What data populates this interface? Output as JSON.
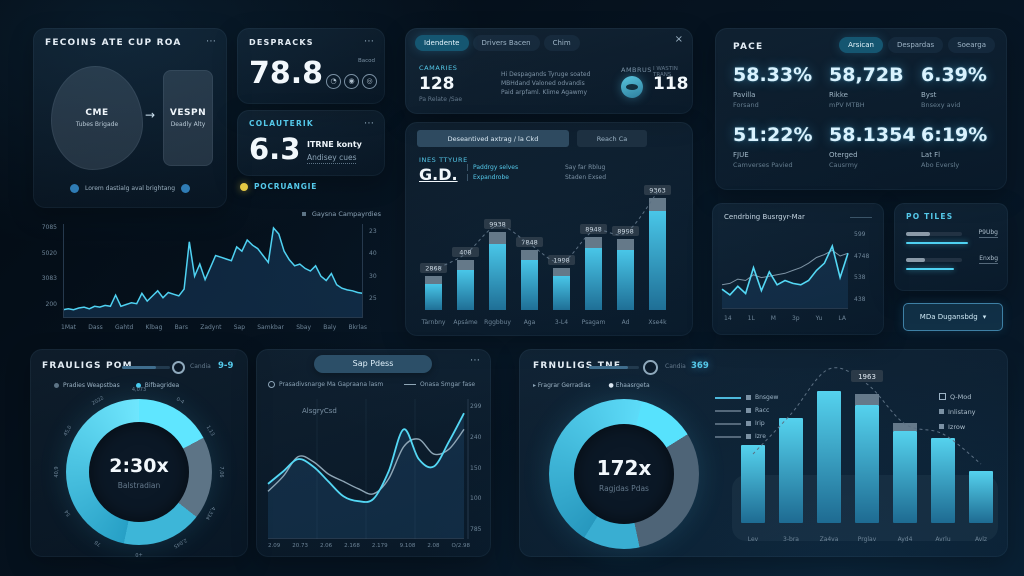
{
  "colors": {
    "accent": "#4fd2f2",
    "accent_bright": "#63e4ff",
    "slate": "#5d7486",
    "panel_line": "#24384c",
    "yellow": "#e5c944",
    "badge_bg": "#2b3a48",
    "bar_top": "#49c6e8",
    "bar_bottom": "#1f6f96"
  },
  "panels": {
    "flow": {
      "title": "FECOINS ATE CUP ROA",
      "menu": "⋯",
      "arrow": "→",
      "shape1": {
        "name": "CME",
        "sub": "Tubes Brigade"
      },
      "shape2": {
        "name": "VESPN",
        "sub": "Deadly Alty"
      },
      "footer": "Lorem dastialg aval brightang"
    },
    "metricA": {
      "title": "DESPRACKS",
      "menu": "⋯",
      "value": "78.8",
      "icons_label": "Bacod",
      "icons": [
        "◔",
        "◉",
        "◎"
      ]
    },
    "metricB": {
      "title": "COLAUTERIK",
      "menu": "⋯",
      "value": "6.3",
      "side_top": "ITRNE konty",
      "side_bottom": "Andisey cues"
    },
    "badgeRow": {
      "label": "POCRUANGIE"
    },
    "tabsPanel": {
      "tabs": [
        "Idendente",
        "Drivers Bacen",
        "Chim"
      ],
      "close": "×",
      "stat1": {
        "label": "CAMARIES",
        "value": "128",
        "sub": "Pa Relate /Sae"
      },
      "paragraph": [
        "Hi Despagands Tyruge soated",
        "MBHdand Valoned odvandis",
        "Paid arpfaml. Klime Agawmy"
      ],
      "stat2_label": "AMBRUS",
      "stat3": {
        "label": "I WASTIN TRANS",
        "value": "118"
      }
    },
    "barPanel": {
      "tab1": "Deseantived axtrag / la Ckd",
      "tab2": "Reach Ca",
      "label": "INES TTYURE",
      "value": "G.D.",
      "side": [
        "Paddrgy selves",
        "Expandrobe"
      ],
      "note": [
        "Say far Rblug",
        "Staden Exsed"
      ]
    },
    "pace": {
      "title": "PACE",
      "tabs": [
        "Arsican",
        "Despardas",
        "Soearga"
      ],
      "stats": [
        {
          "v": "58.33%",
          "l1": "Pavilla",
          "l2": "Forsand"
        },
        {
          "v": "58,72B",
          "l1": "Rikke",
          "l2": "mPV MTBH"
        },
        {
          "v": "6.39%",
          "l1": "Byst",
          "l2": "Bnsexy avid"
        },
        {
          "v": "51:22%",
          "l1": "FJUE",
          "l2": "Camverses Pavied"
        },
        {
          "v": "58.1354",
          "l1": "Oterged",
          "l2": "Causrmy"
        },
        {
          "v": "6:19%",
          "l1": "Lat Fl",
          "l2": "Abo Eversly"
        }
      ]
    },
    "trendSmall": {
      "title": "Cendrbing Busrgyr-Mar"
    },
    "poTiles": {
      "title": "PO TILES",
      "rows": [
        {
          "label": "P9Ubg",
          "fill": 42,
          "line": 62
        },
        {
          "label": "Enxbg",
          "fill": 34,
          "line": 48
        }
      ]
    },
    "dropdownButton": {
      "label": "MDa Dugansbdg",
      "chevron": "▾"
    },
    "gaugeLeft": {
      "title": "FRAULIGS POM",
      "slider_label": "Candia",
      "slider_value": "9-9",
      "legend": [
        {
          "label": "Pradies Weapstbas",
          "color": "#5d7486"
        },
        {
          "label": "Bifbagridea",
          "color": "#49cdf0"
        }
      ],
      "center": "2:30x",
      "center_sub": "Balstradian",
      "ticks": [
        "4,073",
        "0-4",
        "1,13",
        "7,06",
        "4,334",
        "2,045",
        "+0",
        "78",
        "54",
        "40,9",
        "45,0",
        "2022"
      ]
    },
    "linePanel": {
      "tab": "Sap Pdess",
      "menu": "⋯",
      "legend1": "Prasadivsnarge Ma Gapraana lasm",
      "legend2": "Onasa Smgar fase",
      "annotation": "AlsgryCsd"
    },
    "gaugeRight": {
      "title": "FRNULIGS TNE",
      "slider_label": "Candia",
      "slider_value": "369",
      "legend": [
        {
          "label": "Fragrar Gerradias",
          "marker": "▸"
        },
        {
          "label": "Ehaasrgeta",
          "marker": "●"
        }
      ],
      "center": "172x",
      "center_sub": "Ragjdas Pdas",
      "mini_legend": [
        "Bnsgew",
        "Racc",
        "Irip",
        "Izre"
      ],
      "side_legend": [
        "Q-Mod",
        "Inlistany",
        "Izrow"
      ]
    }
  },
  "chart_data": [
    {
      "id": "trend-main",
      "type": "area",
      "title": "",
      "legend": "Gaysna Campayrdies",
      "color": "#4fd2f2",
      "note": "relative values 0-100, axis labels decorative",
      "values": [
        5,
        6,
        5,
        7,
        8,
        6,
        9,
        8,
        10,
        9,
        22,
        9,
        11,
        13,
        12,
        24,
        15,
        21,
        27,
        19,
        25,
        23,
        21,
        29,
        84,
        44,
        58,
        40,
        54,
        68,
        66,
        64,
        62,
        78,
        73,
        86,
        80,
        76,
        68,
        60,
        100,
        93,
        73,
        63,
        56,
        58,
        53,
        50,
        56,
        44,
        39,
        47,
        34,
        30,
        28,
        27,
        25,
        24
      ],
      "y_left": [
        "7085",
        "5020",
        "3083",
        "200"
      ],
      "y_right": [
        "23",
        "40",
        "30",
        "25"
      ],
      "x": [
        "1Mat",
        "Dass",
        "Gahtd",
        "Klbag",
        "Bars",
        "Zadynt",
        "Sap",
        "Samkbar",
        "Sbay",
        "Baly",
        "Bkrlas"
      ]
    },
    {
      "id": "bars-main",
      "type": "bar",
      "badges": [
        "2868",
        "408",
        "9938",
        "7848",
        "1998",
        "8948",
        "8998",
        "9363"
      ],
      "heights": [
        26,
        40,
        66,
        50,
        34,
        62,
        60,
        99
      ],
      "caps": [
        8,
        10,
        12,
        10,
        8,
        11,
        11,
        13
      ],
      "x": [
        "Tärnbny",
        "Apsáme",
        "Rggbbuy",
        "Aga",
        "3-L4",
        "Psagam",
        "Ad",
        "Xse4k"
      ]
    },
    {
      "id": "line-small",
      "type": "line",
      "series": [
        {
          "name": "primary",
          "color": "#54d8f5",
          "values": [
            22,
            14,
            26,
            16,
            52,
            20,
            46,
            28,
            34,
            30,
            28,
            34,
            48,
            58,
            82,
            38,
            72
          ]
        },
        {
          "name": "secondary",
          "color": "#7d93a4",
          "values": [
            28,
            30,
            36,
            34,
            42,
            38,
            40,
            42,
            44,
            48,
            52,
            58,
            66,
            70,
            76,
            68,
            72
          ]
        }
      ],
      "y_right": [
        "599",
        "4748",
        "538",
        "438"
      ],
      "x": [
        "14",
        "1L",
        "M",
        "3p",
        "Yu",
        "LA"
      ]
    },
    {
      "id": "line-smooth",
      "type": "line",
      "series": [
        {
          "name": "primary",
          "color": "#54d8f5",
          "values": [
            38,
            48,
            58,
            52,
            40,
            28,
            24,
            26,
            48,
            82,
            58,
            52,
            72,
            95
          ]
        },
        {
          "name": "secondary",
          "color": "#8fa6b6",
          "values": [
            32,
            44,
            60,
            56,
            46,
            40,
            34,
            30,
            42,
            68,
            74,
            62,
            66,
            82
          ]
        }
      ],
      "y_right": [
        "299",
        "240",
        "150",
        "100",
        "785"
      ],
      "x": [
        "2.09",
        "20.73",
        "2.06",
        "2.168",
        "2.179",
        "9.108",
        "2.08",
        "O/2.98"
      ]
    },
    {
      "id": "donut-left",
      "type": "pie",
      "center": "2:30x",
      "from": 0,
      "segments": [
        {
          "c": "#5fe6ff",
          "a": 0,
          "b": 62
        },
        {
          "c": "#5d7486",
          "a": 62,
          "b": 128
        },
        {
          "c": "#3db6d8",
          "a": 128,
          "b": 192
        },
        {
          "c": "#27a0c6",
          "c2": "#6fe6fd",
          "a": 192,
          "b": 360
        }
      ]
    },
    {
      "id": "donut-right",
      "type": "pie",
      "center": "172x",
      "from": 14,
      "segments": [
        {
          "c": "#57e2fd",
          "a": 0,
          "b": 44
        },
        {
          "c": "#4e6477",
          "a": 44,
          "b": 154
        },
        {
          "c": "#39aed2",
          "a": 154,
          "b": 198
        },
        {
          "c": "#2798be",
          "c2": "#5ddbf8",
          "a": 198,
          "b": 360
        }
      ]
    },
    {
      "id": "bars-right",
      "type": "bar",
      "heights": [
        78,
        105,
        132,
        118,
        92,
        85,
        52
      ],
      "caps": [
        0,
        0,
        0,
        11,
        8,
        0,
        0
      ],
      "badge": {
        "index": 3,
        "label": "1963"
      },
      "trend": [
        55,
        95,
        140,
        125,
        85,
        75,
        45
      ],
      "x": [
        "Lev",
        "3-bra",
        "Za4va",
        "Prglav",
        "Ayd4",
        "Avrlu",
        "Avlz"
      ]
    }
  ]
}
